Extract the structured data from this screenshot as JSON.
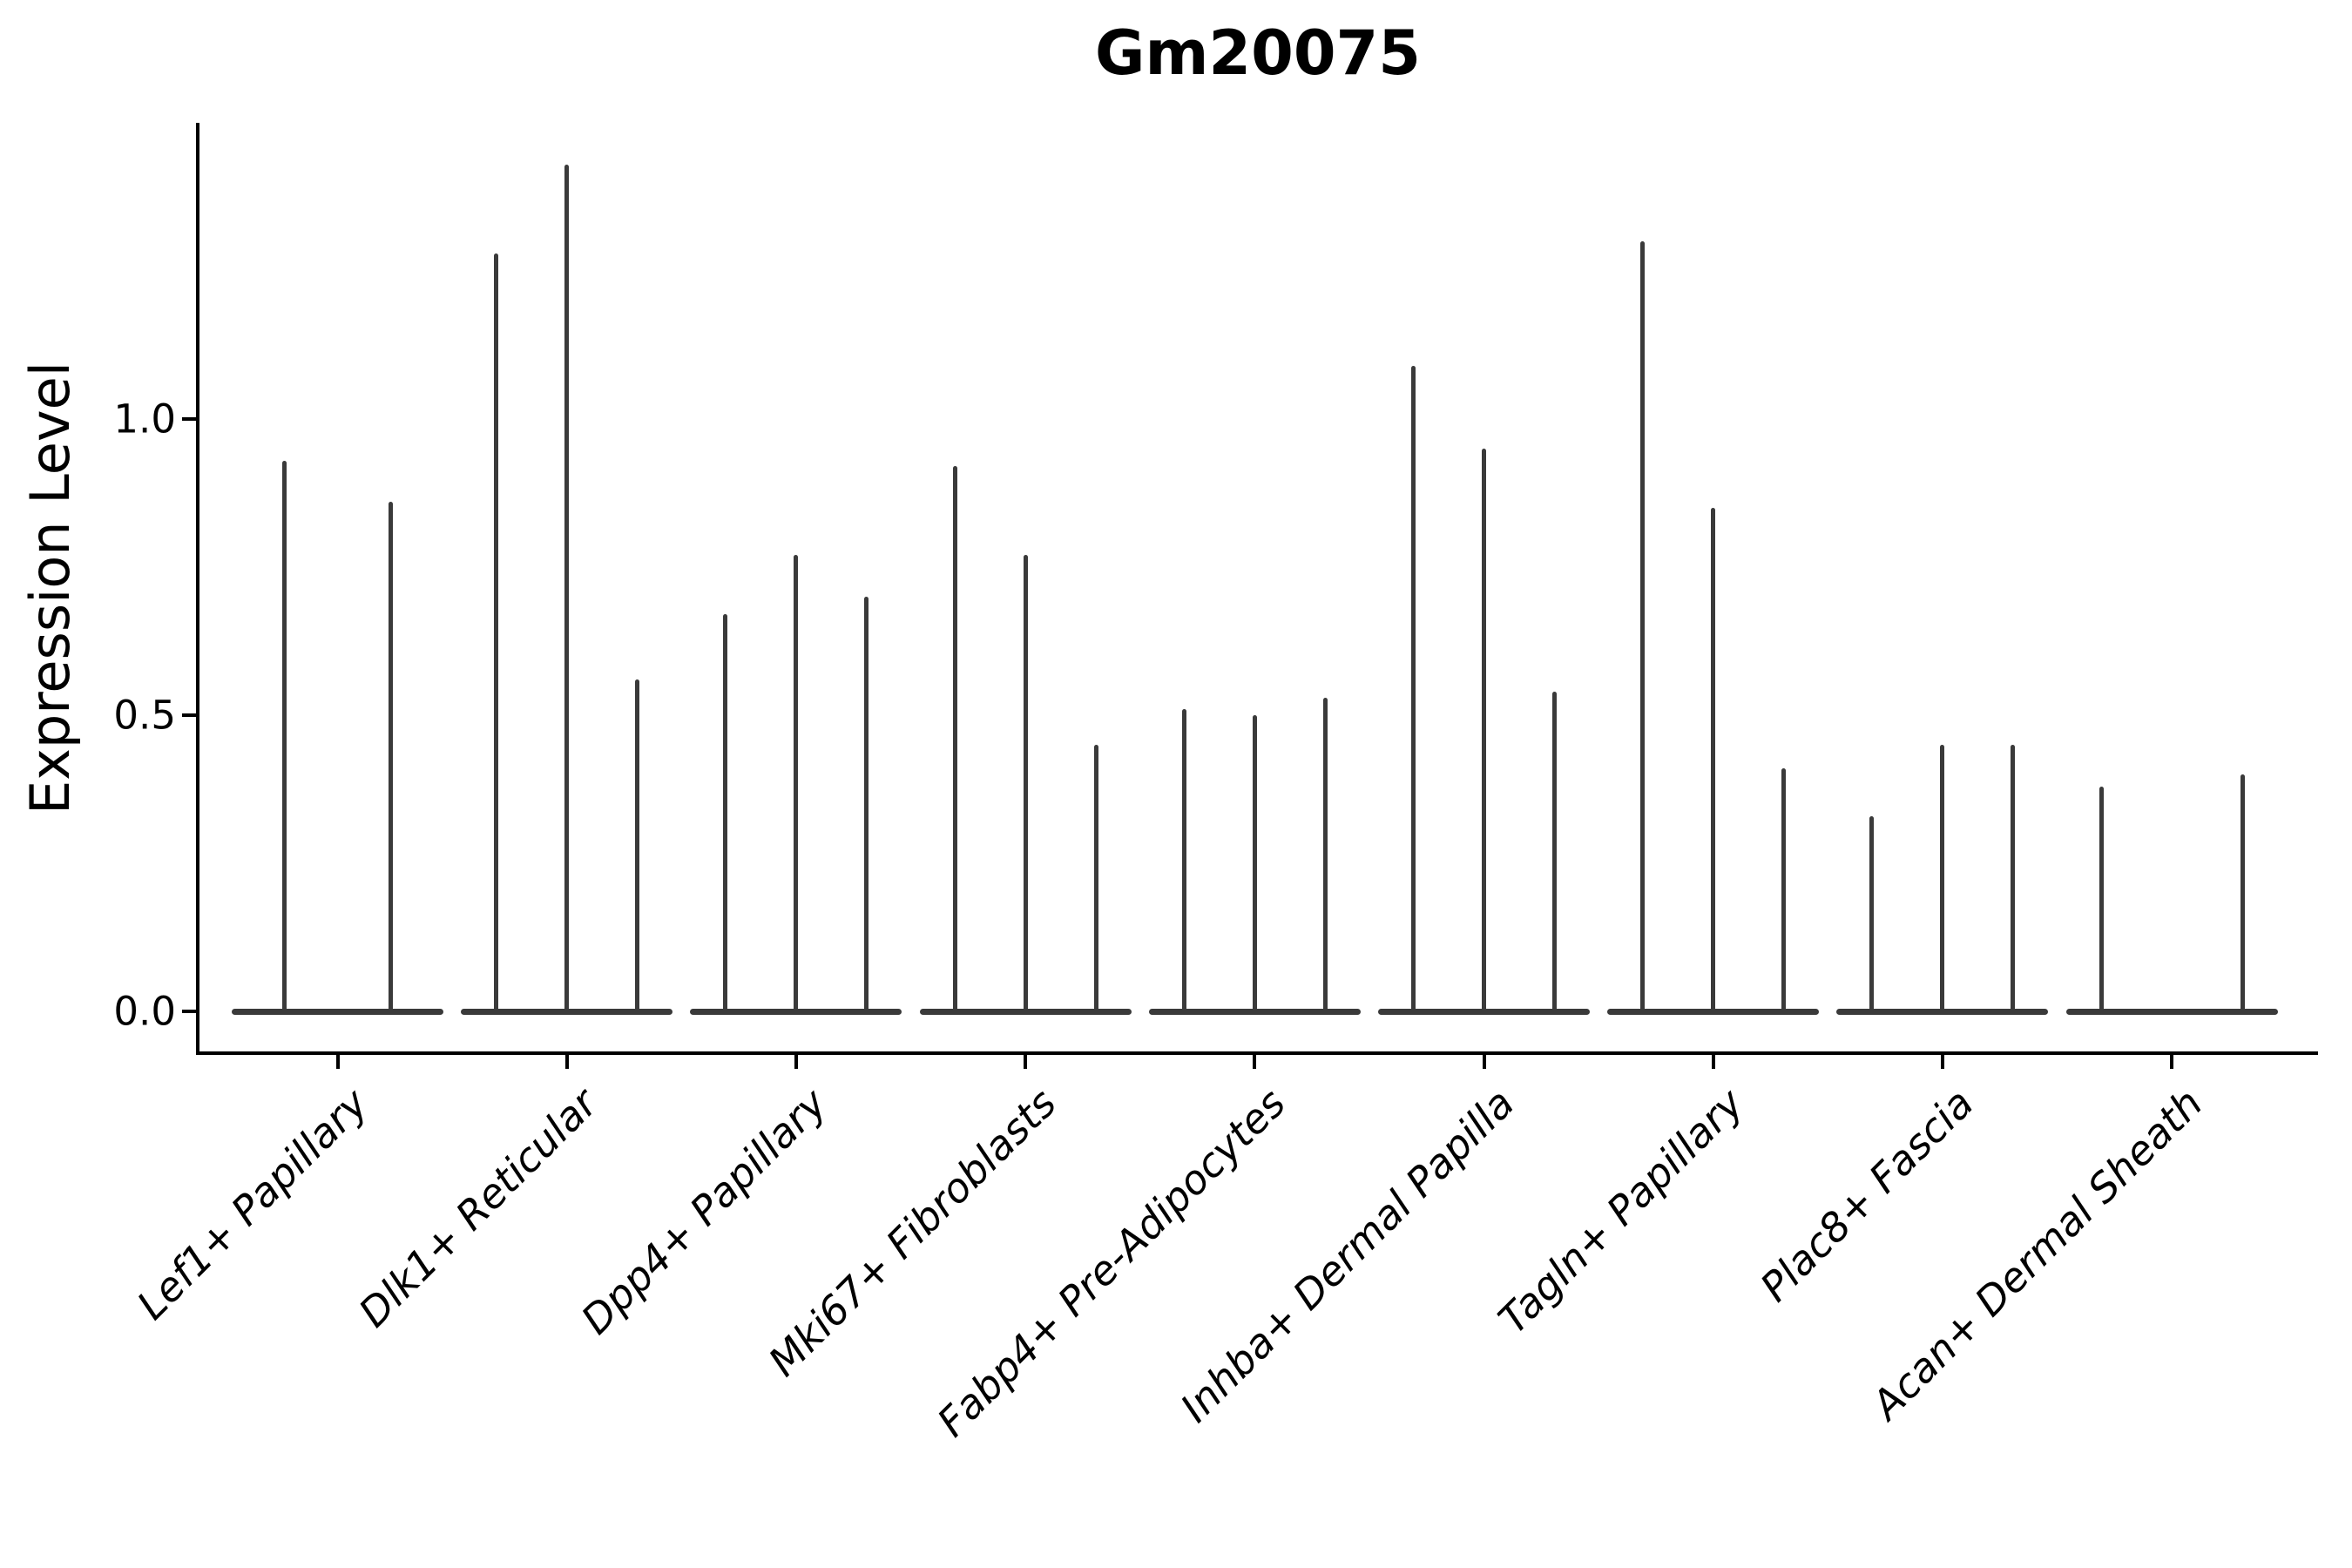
{
  "chart_data": {
    "type": "violin",
    "title": "Gm20075",
    "ylabel": "Expression Level",
    "xlabel": "",
    "ylim": [
      -0.07,
      1.5
    ],
    "grid": false,
    "legend": "none",
    "yticks": [
      {
        "value": 0.0,
        "label": "0.0"
      },
      {
        "value": 0.5,
        "label": "0.5"
      },
      {
        "value": 1.0,
        "label": "1.0"
      }
    ],
    "categories": [
      "Lef1+ Papillary",
      "Dlk1+ Reticular",
      "Dpp4+ Papillary",
      "Mki67+ Fibroblasts",
      "Fabp4+ Pre-Adipocytes",
      "Inhba+ Dermal Papilla",
      "Tagln+ Papillary",
      "Plac8+ Fascia",
      "Acan+ Dermal Sheath"
    ],
    "violins": [
      {
        "category": "Lef1+ Papillary",
        "spike_heights": [
          0.93,
          0.86
        ]
      },
      {
        "category": "Dlk1+ Reticular",
        "spike_heights": [
          1.28,
          1.43,
          0.56
        ]
      },
      {
        "category": "Dpp4+ Papillary",
        "spike_heights": [
          0.67,
          0.77,
          0.7
        ]
      },
      {
        "category": "Mki67+ Fibroblasts",
        "spike_heights": [
          0.92,
          0.77,
          0.45
        ]
      },
      {
        "category": "Fabp4+ Pre-Adipocytes",
        "spike_heights": [
          0.51,
          0.5,
          0.53
        ]
      },
      {
        "category": "Inhba+ Dermal Papilla",
        "spike_heights": [
          1.09,
          0.95,
          0.54
        ]
      },
      {
        "category": "Tagln+ Papillary",
        "spike_heights": [
          1.3,
          0.85,
          0.41
        ]
      },
      {
        "category": "Plac8+ Fascia",
        "spike_heights": [
          0.33,
          0.45,
          0.45
        ]
      },
      {
        "category": "Acan+ Dermal Sheath",
        "spike_heights": [
          0.38,
          0.0,
          0.4
        ]
      }
    ],
    "violin_color": "#3a3a3a",
    "axis_color": "#000000",
    "background_color": "#ffffff"
  }
}
